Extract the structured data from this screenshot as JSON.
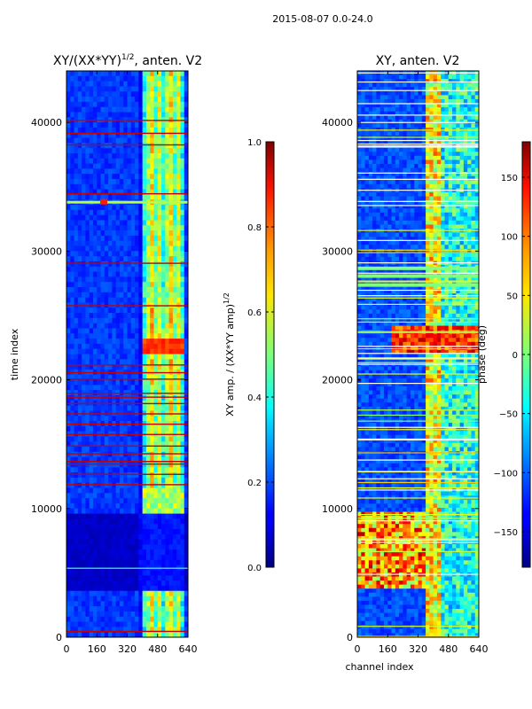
{
  "figure": {
    "suptitle": "2015-08-07 0.0-24.0"
  },
  "chart_data": [
    {
      "type": "heatmap",
      "title_main": "XY/(XX*YY)",
      "title_sup": "1/2",
      "title_rest": ", anten. V2",
      "xlabel": "",
      "ylabel": "time index",
      "xlim": [
        0,
        640
      ],
      "ylim": [
        0,
        44000
      ],
      "xticks": [
        0,
        160,
        320,
        480,
        640
      ],
      "yticks": [
        0,
        10000,
        20000,
        30000,
        40000
      ],
      "colorbar": {
        "label_main": "XY amp. / (XX*YY amp)",
        "label_sup": "1/2",
        "range": [
          0.0,
          1.0
        ],
        "ticks": [
          "0.0",
          "0.2",
          "0.4",
          "0.6",
          "0.8",
          "1.0"
        ],
        "colormap": "jet"
      }
    },
    {
      "type": "heatmap",
      "title": "XY, anten. V2",
      "xlabel": "channel index",
      "ylabel": "",
      "xlim": [
        0,
        640
      ],
      "ylim": [
        0,
        44000
      ],
      "xticks": [
        0,
        160,
        320,
        480,
        640
      ],
      "yticks": [
        0,
        10000,
        20000,
        30000,
        40000
      ],
      "colorbar": {
        "label": "phase (deg)",
        "range": [
          -180,
          180
        ],
        "ticks": [
          "−150",
          "−100",
          "−50",
          "0",
          "50",
          "100",
          "150"
        ],
        "colormap": "jet"
      }
    }
  ]
}
